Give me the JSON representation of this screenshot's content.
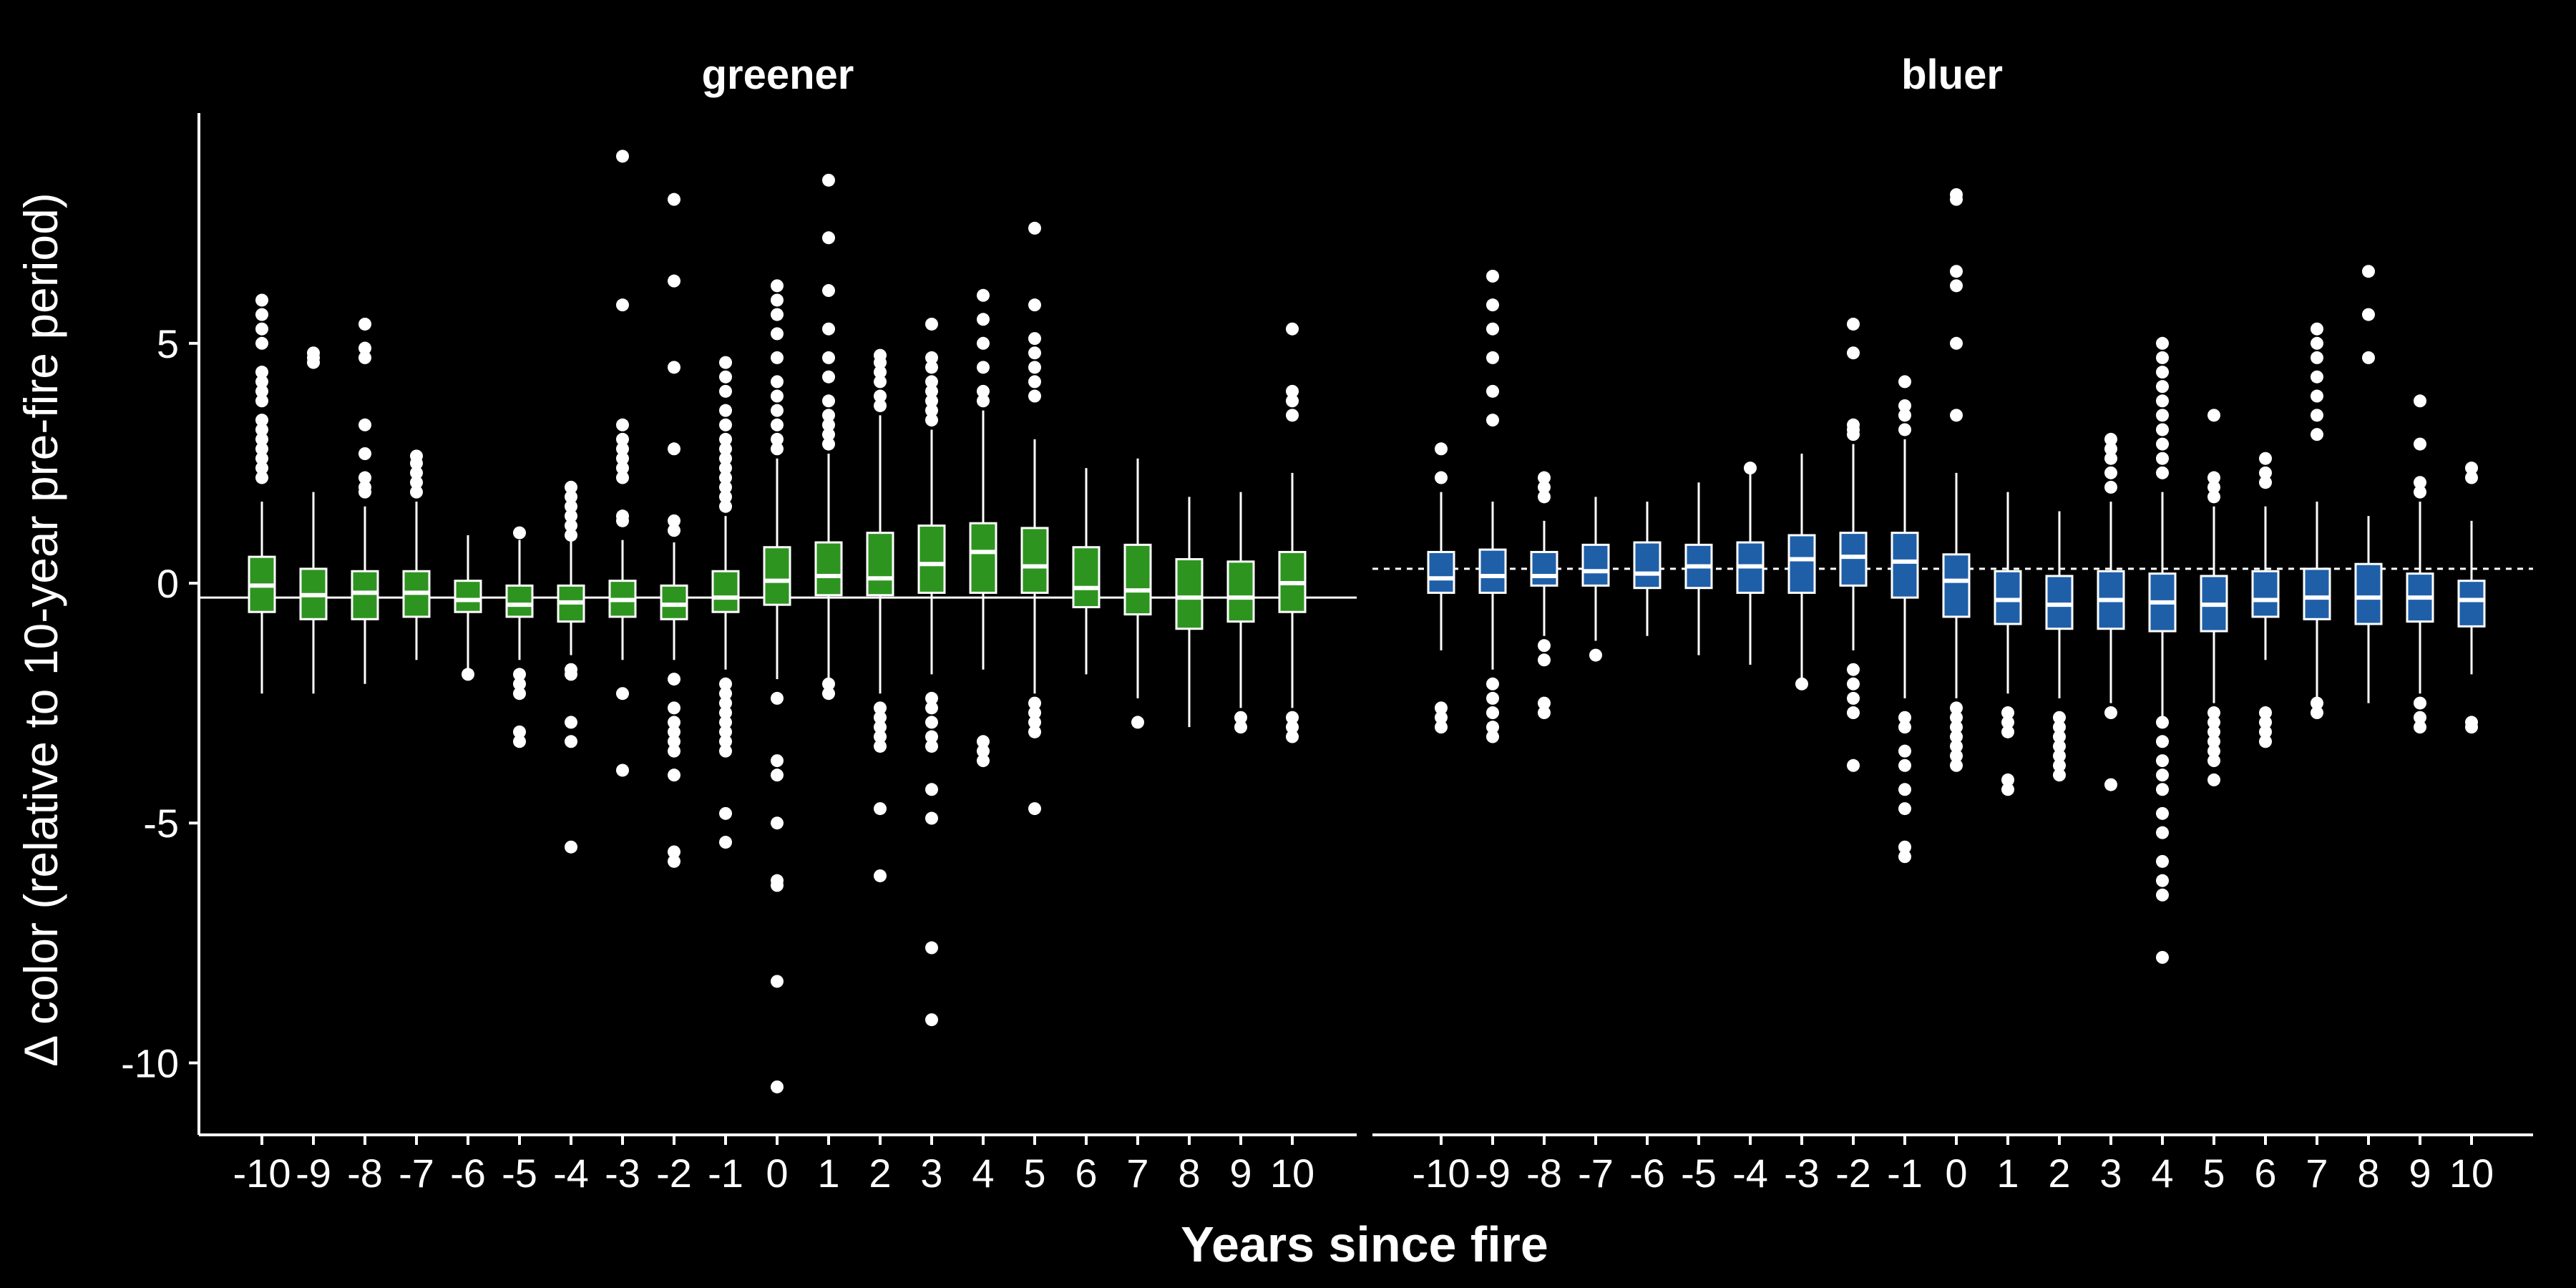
{
  "chart_data": {
    "type": "boxplot",
    "xlabel": "Years since fire",
    "ylabel": "Δ color (relative to 10-year pre-fire period)",
    "ylim": [
      -11.5,
      9.8
    ],
    "yticks": [
      -10,
      -5,
      0,
      5
    ],
    "ytick_labels": [
      "-10",
      "-5",
      "0",
      "5"
    ],
    "categories": [
      "-10",
      "-9",
      "-8",
      "-7",
      "-6",
      "-5",
      "-4",
      "-3",
      "-2",
      "-1",
      "0",
      "1",
      "2",
      "3",
      "4",
      "5",
      "6",
      "7",
      "8",
      "9",
      "10"
    ],
    "colors": {
      "background": "#000000",
      "foreground": "#ffffff",
      "greener": "#2e9420",
      "bluer": "#1f5fa8"
    },
    "panels": [
      {
        "title": "greener",
        "fill": "#2e9420",
        "reference_line": {
          "value": -0.3,
          "style": "solid"
        },
        "boxes": [
          {
            "q1": -0.6,
            "median": -0.05,
            "q3": 0.55,
            "lo": -2.3,
            "hi": 1.7,
            "outliers": [
              2.2,
              2.4,
              2.6,
              2.8,
              3.0,
              3.2,
              3.4,
              3.8,
              4.0,
              4.2,
              4.4,
              5.0,
              5.3,
              5.6,
              5.9
            ]
          },
          {
            "q1": -0.75,
            "median": -0.25,
            "q3": 0.3,
            "lo": -2.3,
            "hi": 1.9,
            "outliers": [
              4.6,
              4.7,
              4.8
            ]
          },
          {
            "q1": -0.75,
            "median": -0.2,
            "q3": 0.25,
            "lo": -2.1,
            "hi": 1.6,
            "outliers": [
              1.9,
              2.0,
              2.2,
              2.7,
              3.3,
              4.7,
              4.9,
              5.4
            ]
          },
          {
            "q1": -0.7,
            "median": -0.2,
            "q3": 0.25,
            "lo": -1.6,
            "hi": 1.7,
            "outliers": [
              1.9,
              2.1,
              2.3,
              2.5,
              2.65
            ]
          },
          {
            "q1": -0.6,
            "median": -0.35,
            "q3": 0.05,
            "lo": -1.9,
            "hi": 1.0,
            "outliers": [
              -1.9
            ]
          },
          {
            "q1": -0.7,
            "median": -0.45,
            "q3": -0.05,
            "lo": -1.6,
            "hi": 0.9,
            "outliers": [
              1.05,
              -1.9,
              -2.1,
              -2.3,
              -3.1,
              -3.3
            ]
          },
          {
            "q1": -0.8,
            "median": -0.4,
            "q3": -0.05,
            "lo": -1.5,
            "hi": 0.9,
            "outliers": [
              1.0,
              1.2,
              1.4,
              1.6,
              1.8,
              2.0,
              -1.8,
              -1.9,
              -2.9,
              -3.3,
              -5.5
            ]
          },
          {
            "q1": -0.7,
            "median": -0.35,
            "q3": 0.05,
            "lo": -1.6,
            "hi": 0.9,
            "outliers": [
              1.3,
              1.4,
              2.2,
              2.4,
              2.6,
              2.8,
              3.0,
              3.3,
              5.8,
              8.9,
              -2.3,
              -3.9
            ]
          },
          {
            "q1": -0.75,
            "median": -0.45,
            "q3": -0.05,
            "lo": -1.6,
            "hi": 0.85,
            "outliers": [
              1.1,
              1.3,
              2.8,
              4.5,
              6.3,
              8.0,
              -2.0,
              -2.6,
              -2.9,
              -3.1,
              -3.3,
              -3.5,
              -4.0,
              -5.6,
              -5.8
            ]
          },
          {
            "q1": -0.6,
            "median": -0.3,
            "q3": 0.25,
            "lo": -1.8,
            "hi": 1.4,
            "outliers": [
              1.6,
              1.8,
              2.0,
              2.2,
              2.4,
              2.6,
              2.8,
              3.0,
              3.3,
              3.6,
              4.0,
              4.3,
              4.6,
              -2.1,
              -2.3,
              -2.5,
              -2.7,
              -2.9,
              -3.1,
              -3.3,
              -3.5,
              -4.8,
              -5.4
            ]
          },
          {
            "q1": -0.45,
            "median": 0.05,
            "q3": 0.75,
            "lo": -2.0,
            "hi": 2.6,
            "outliers": [
              2.8,
              3.0,
              3.3,
              3.6,
              3.9,
              4.2,
              4.7,
              5.2,
              5.6,
              5.9,
              6.2,
              -2.4,
              -3.7,
              -4.0,
              -5.0,
              -6.2,
              -6.3,
              -8.3,
              -10.5
            ]
          },
          {
            "q1": -0.25,
            "median": 0.15,
            "q3": 0.85,
            "lo": -2.0,
            "hi": 2.7,
            "outliers": [
              2.9,
              3.1,
              3.3,
              3.5,
              3.8,
              4.3,
              4.7,
              5.3,
              6.1,
              7.2,
              8.4,
              -2.1,
              -2.3
            ]
          },
          {
            "q1": -0.25,
            "median": 0.1,
            "q3": 1.05,
            "lo": -2.3,
            "hi": 3.5,
            "outliers": [
              3.7,
              3.9,
              4.2,
              4.4,
              4.6,
              4.75,
              -2.6,
              -2.8,
              -3.0,
              -3.2,
              -3.4,
              -4.7,
              -6.1
            ]
          },
          {
            "q1": -0.2,
            "median": 0.4,
            "q3": 1.2,
            "lo": -1.9,
            "hi": 3.2,
            "outliers": [
              3.4,
              3.6,
              3.8,
              4.0,
              4.2,
              4.5,
              4.7,
              5.4,
              -2.4,
              -2.6,
              -2.9,
              -3.2,
              -3.4,
              -4.3,
              -4.9,
              -7.6,
              -9.1
            ]
          },
          {
            "q1": -0.2,
            "median": 0.65,
            "q3": 1.25,
            "lo": -1.8,
            "hi": 3.6,
            "outliers": [
              3.8,
              4.0,
              4.5,
              5.0,
              5.5,
              6.0,
              -3.3,
              -3.5,
              -3.7
            ]
          },
          {
            "q1": -0.2,
            "median": 0.35,
            "q3": 1.15,
            "lo": -2.3,
            "hi": 3.0,
            "outliers": [
              3.9,
              4.2,
              4.5,
              4.8,
              5.1,
              5.8,
              7.4,
              -2.5,
              -2.7,
              -2.9,
              -3.1,
              -4.7
            ]
          },
          {
            "q1": -0.5,
            "median": -0.1,
            "q3": 0.75,
            "lo": -1.9,
            "hi": 2.4,
            "outliers": []
          },
          {
            "q1": -0.65,
            "median": -0.15,
            "q3": 0.8,
            "lo": -2.4,
            "hi": 2.6,
            "outliers": [
              -2.9
            ]
          },
          {
            "q1": -0.95,
            "median": -0.3,
            "q3": 0.5,
            "lo": -3.0,
            "hi": 1.8,
            "outliers": []
          },
          {
            "q1": -0.8,
            "median": -0.3,
            "q3": 0.45,
            "lo": -2.6,
            "hi": 1.9,
            "outliers": [
              -2.8,
              -3.0
            ]
          },
          {
            "q1": -0.6,
            "median": 0.0,
            "q3": 0.65,
            "lo": -2.6,
            "hi": 2.3,
            "outliers": [
              3.5,
              3.8,
              4.0,
              5.3,
              -2.8,
              -3.0,
              -3.2
            ]
          }
        ]
      },
      {
        "title": "bluer",
        "fill": "#1f5fa8",
        "reference_line": {
          "value": 0.3,
          "style": "dashed"
        },
        "boxes": [
          {
            "q1": -0.2,
            "median": 0.1,
            "q3": 0.65,
            "lo": -1.4,
            "hi": 1.9,
            "outliers": [
              2.2,
              2.8,
              -2.6,
              -2.8,
              -3.0
            ]
          },
          {
            "q1": -0.2,
            "median": 0.15,
            "q3": 0.7,
            "lo": -1.8,
            "hi": 1.7,
            "outliers": [
              3.4,
              4.0,
              4.7,
              5.3,
              5.8,
              6.4,
              -2.1,
              -2.4,
              -2.7,
              -3.0,
              -3.2
            ]
          },
          {
            "q1": -0.05,
            "median": 0.15,
            "q3": 0.65,
            "lo": -1.1,
            "hi": 1.3,
            "outliers": [
              1.8,
              2.0,
              2.2,
              -1.3,
              -1.6,
              -2.5,
              -2.7
            ]
          },
          {
            "q1": -0.05,
            "median": 0.25,
            "q3": 0.8,
            "lo": -1.2,
            "hi": 1.8,
            "outliers": [
              -1.5
            ]
          },
          {
            "q1": -0.1,
            "median": 0.2,
            "q3": 0.85,
            "lo": -1.1,
            "hi": 1.7,
            "outliers": []
          },
          {
            "q1": -0.1,
            "median": 0.35,
            "q3": 0.8,
            "lo": -1.5,
            "hi": 2.1,
            "outliers": []
          },
          {
            "q1": -0.2,
            "median": 0.35,
            "q3": 0.85,
            "lo": -1.7,
            "hi": 2.3,
            "outliers": [
              2.4
            ]
          },
          {
            "q1": -0.2,
            "median": 0.5,
            "q3": 1.0,
            "lo": -2.0,
            "hi": 2.7,
            "outliers": [
              -2.1
            ]
          },
          {
            "q1": -0.05,
            "median": 0.55,
            "q3": 1.05,
            "lo": -1.4,
            "hi": 2.9,
            "outliers": [
              3.1,
              3.2,
              3.3,
              4.8,
              5.4,
              -1.8,
              -2.1,
              -2.4,
              -2.7,
              -3.8
            ]
          },
          {
            "q1": -0.3,
            "median": 0.45,
            "q3": 1.05,
            "lo": -2.4,
            "hi": 3.0,
            "outliers": [
              3.2,
              3.5,
              3.7,
              4.2,
              -2.8,
              -3.0,
              -3.5,
              -3.8,
              -4.3,
              -4.7,
              -5.5,
              -5.7
            ]
          },
          {
            "q1": -0.7,
            "median": 0.05,
            "q3": 0.6,
            "lo": -2.4,
            "hi": 2.3,
            "outliers": [
              3.5,
              5.0,
              6.2,
              6.5,
              8.0,
              8.1,
              -2.6,
              -2.8,
              -3.0,
              -3.2,
              -3.4,
              -3.6,
              -3.8
            ]
          },
          {
            "q1": -0.85,
            "median": -0.35,
            "q3": 0.25,
            "lo": -2.3,
            "hi": 1.9,
            "outliers": [
              -2.7,
              -2.9,
              -3.1,
              -4.1,
              -4.3
            ]
          },
          {
            "q1": -0.95,
            "median": -0.45,
            "q3": 0.15,
            "lo": -2.4,
            "hi": 1.5,
            "outliers": [
              -2.8,
              -3.0,
              -3.2,
              -3.4,
              -3.6,
              -3.8,
              -4.0
            ]
          },
          {
            "q1": -0.95,
            "median": -0.35,
            "q3": 0.25,
            "lo": -2.5,
            "hi": 1.7,
            "outliers": [
              2.0,
              2.3,
              2.6,
              2.8,
              3.0,
              -2.7,
              -4.2
            ]
          },
          {
            "q1": -1.0,
            "median": -0.4,
            "q3": 0.2,
            "lo": -2.8,
            "hi": 1.9,
            "outliers": [
              2.3,
              2.6,
              2.9,
              3.2,
              3.5,
              3.8,
              4.1,
              4.4,
              4.7,
              5.0,
              -2.9,
              -3.3,
              -3.7,
              -4.0,
              -4.3,
              -4.8,
              -5.2,
              -5.8,
              -6.2,
              -6.5,
              -7.8
            ]
          },
          {
            "q1": -1.0,
            "median": -0.45,
            "q3": 0.15,
            "lo": -2.5,
            "hi": 1.6,
            "outliers": [
              1.8,
              2.0,
              2.2,
              3.5,
              -2.7,
              -2.9,
              -3.1,
              -3.3,
              -3.5,
              -3.7,
              -4.1
            ]
          },
          {
            "q1": -0.7,
            "median": -0.35,
            "q3": 0.25,
            "lo": -1.6,
            "hi": 1.6,
            "outliers": [
              2.1,
              2.3,
              2.6,
              -2.7,
              -2.9,
              -3.1,
              -3.3
            ]
          },
          {
            "q1": -0.75,
            "median": -0.3,
            "q3": 0.3,
            "lo": -2.4,
            "hi": 1.7,
            "outliers": [
              3.1,
              3.5,
              3.9,
              4.3,
              4.7,
              5.0,
              5.3,
              -2.5,
              -2.7
            ]
          },
          {
            "q1": -0.85,
            "median": -0.3,
            "q3": 0.4,
            "lo": -2.5,
            "hi": 1.4,
            "outliers": [
              4.7,
              5.6,
              6.5
            ]
          },
          {
            "q1": -0.8,
            "median": -0.3,
            "q3": 0.2,
            "lo": -2.3,
            "hi": 1.7,
            "outliers": [
              1.9,
              2.1,
              2.9,
              3.8,
              -2.5,
              -2.8,
              -3.0
            ]
          },
          {
            "q1": -0.9,
            "median": -0.35,
            "q3": 0.05,
            "lo": -1.9,
            "hi": 1.3,
            "outliers": [
              2.2,
              2.4,
              -2.9,
              -3.0
            ]
          }
        ]
      }
    ]
  }
}
